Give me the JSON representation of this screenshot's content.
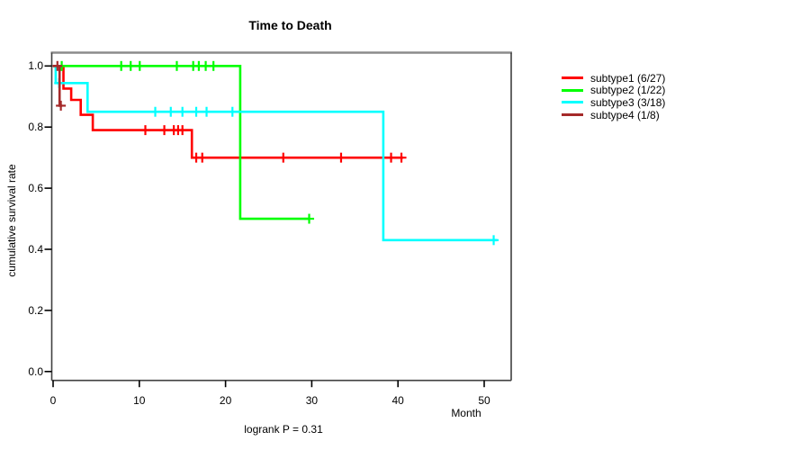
{
  "page": {
    "background": "#ffffff"
  },
  "chart_data": {
    "type": "line",
    "subtype": "kaplan-meier-step-survival",
    "title": "Time to Death",
    "xlabel": "Month",
    "ylabel": "cumulative survival rate",
    "footnote": "logrank P = 0.31",
    "xlim": [
      0,
      53
    ],
    "ylim": [
      0,
      1
    ],
    "grid": false,
    "legend_position": "right-outside",
    "xticks": [
      0,
      10,
      20,
      30,
      40,
      50
    ],
    "xtick_labels": [
      "0",
      "10",
      "20",
      "30",
      "40",
      "50"
    ],
    "yticks": [
      0.0,
      0.2,
      0.4,
      0.6,
      0.8,
      1.0
    ],
    "ytick_labels": [
      "0.0",
      "0.2",
      "0.4",
      "0.6",
      "0.8",
      "1.0"
    ],
    "axis_colors": {
      "box_top": "#8b8b8b",
      "box_sides": "#404040",
      "tick": "#000000"
    },
    "series": [
      {
        "name": "subtype1 (6/27)",
        "color": "#ff0000",
        "steps": [
          [
            0,
            1.0
          ],
          [
            1.2,
            0.926
          ],
          [
            2.1,
            0.889
          ],
          [
            3.2,
            0.84
          ],
          [
            4.6,
            0.79
          ],
          [
            16.1,
            0.7
          ]
        ],
        "end_x": 40.6,
        "censors": [
          [
            10.7,
            0.79
          ],
          [
            12.9,
            0.79
          ],
          [
            14.0,
            0.79
          ],
          [
            14.5,
            0.79
          ],
          [
            15.0,
            0.79
          ],
          [
            16.6,
            0.7
          ],
          [
            17.3,
            0.7
          ],
          [
            26.7,
            0.7
          ],
          [
            33.4,
            0.7
          ],
          [
            39.2,
            0.7
          ],
          [
            40.4,
            0.7
          ]
        ]
      },
      {
        "name": "subtype2 (1/22)",
        "color": "#00ff00",
        "steps": [
          [
            0,
            1.0
          ],
          [
            21.7,
            0.5
          ]
        ],
        "end_x": 29.8,
        "censors": [
          [
            1.0,
            1.0
          ],
          [
            7.9,
            1.0
          ],
          [
            9.0,
            1.0
          ],
          [
            10.05,
            1.0
          ],
          [
            14.35,
            1.0
          ],
          [
            16.25,
            1.0
          ],
          [
            16.9,
            1.0
          ],
          [
            17.7,
            1.0
          ],
          [
            18.6,
            1.0
          ],
          [
            29.7,
            0.5
          ]
        ]
      },
      {
        "name": "subtype3 (3/18)",
        "color": "#00ffff",
        "steps": [
          [
            0,
            1.0
          ],
          [
            0.3,
            0.944
          ],
          [
            4.0,
            0.85
          ],
          [
            38.3,
            0.43
          ]
        ],
        "end_x": 51.5,
        "censors": [
          [
            0.7,
            0.944
          ],
          [
            11.85,
            0.85
          ],
          [
            13.65,
            0.85
          ],
          [
            15.0,
            0.85
          ],
          [
            16.6,
            0.85
          ],
          [
            17.8,
            0.85
          ],
          [
            20.8,
            0.85
          ],
          [
            51.1,
            0.43
          ]
        ]
      },
      {
        "name": "subtype4 (1/8)",
        "color": "#a52a2a",
        "steps": [
          [
            0,
            1.0
          ],
          [
            0.75,
            0.87
          ]
        ],
        "end_x": 1.05,
        "censors": [
          [
            0.5,
            1.0
          ],
          [
            0.9,
            0.87
          ]
        ]
      }
    ]
  }
}
